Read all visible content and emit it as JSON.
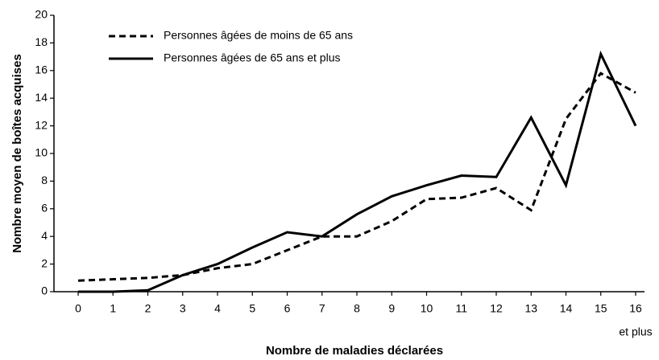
{
  "chart_data": {
    "type": "line",
    "xlabel": "Nombre de maladies déclarées",
    "ylabel": "Nombre moyen de boîtes acquises",
    "categories": [
      "0",
      "1",
      "2",
      "3",
      "4",
      "5",
      "6",
      "7",
      "8",
      "9",
      "10",
      "11",
      "12",
      "13",
      "14",
      "15",
      "16"
    ],
    "x_tick_note": "et plus",
    "series": [
      {
        "name": "Personnes âgées de moins de 65 ans",
        "color": "#000000",
        "dash": true,
        "values": [
          0.8,
          0.9,
          1.0,
          1.2,
          1.7,
          2.0,
          3.0,
          4.0,
          4.0,
          5.1,
          6.7,
          6.8,
          7.5,
          5.9,
          12.5,
          15.8,
          14.4
        ]
      },
      {
        "name": "Personnes âgées de 65 ans et plus",
        "color": "#000000",
        "dash": false,
        "values": [
          0,
          0,
          0.1,
          1.2,
          2.0,
          3.2,
          4.3,
          4.0,
          5.6,
          6.9,
          7.7,
          8.4,
          8.3,
          12.6,
          7.7,
          17.2,
          12.0
        ]
      }
    ],
    "ylim": [
      0,
      20
    ],
    "yticks": [
      0,
      2,
      4,
      6,
      8,
      10,
      12,
      14,
      16,
      18,
      20
    ]
  }
}
